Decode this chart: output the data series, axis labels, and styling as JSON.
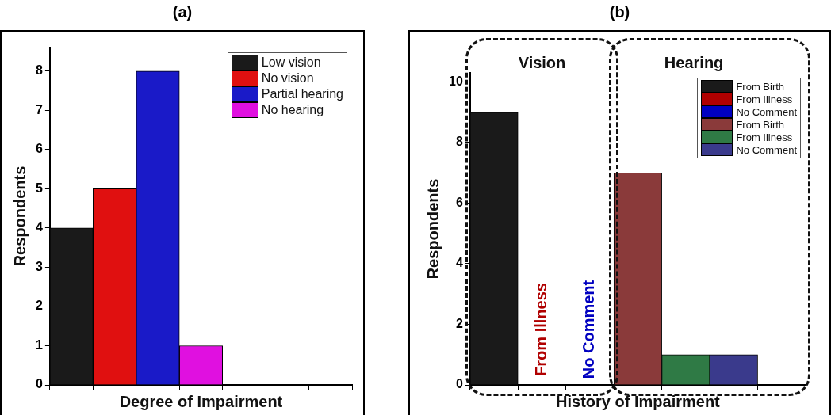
{
  "chart_data": [
    {
      "type": "bar",
      "title": "(a)",
      "xlabel": "Degree of Impairment",
      "ylabel": "Respondents",
      "categories": [
        null,
        null,
        null,
        null,
        null,
        null,
        null
      ],
      "series": [
        {
          "name": "Low vision",
          "color": "#1a1a1a",
          "values": [
            4,
            null,
            null,
            null,
            null,
            null,
            null
          ]
        },
        {
          "name": "No vision",
          "color": "#e01010",
          "values": [
            null,
            5,
            null,
            null,
            null,
            null,
            null
          ]
        },
        {
          "name": "Partial hearing",
          "color": "#1a1ac8",
          "values": [
            null,
            null,
            8,
            null,
            null,
            null,
            null
          ]
        },
        {
          "name": "No hearing",
          "color": "#e010e0",
          "values": [
            null,
            null,
            null,
            1,
            null,
            null,
            null
          ]
        }
      ],
      "ylim": [
        0,
        8.6
      ],
      "yticks": [
        0,
        1,
        2,
        3,
        4,
        5,
        6,
        7,
        8
      ],
      "grid": false,
      "legend": "top right",
      "tick_labels": "y"
    },
    {
      "type": "bar",
      "title": "(b)",
      "xlabel": "History of Impairment",
      "ylabel": "Respondents",
      "categories": [
        null,
        null,
        null,
        null,
        null,
        null,
        null
      ],
      "series": [
        {
          "name": "From Birth",
          "color": "#1a1a1a",
          "values": [
            9,
            null,
            null,
            null,
            null,
            null,
            null
          ]
        },
        {
          "name": "From Illness",
          "color": "#b00000",
          "values": [
            null,
            0,
            null,
            null,
            null,
            null,
            null
          ]
        },
        {
          "name": "No Comment",
          "color": "#0000c0",
          "values": [
            null,
            null,
            0,
            null,
            null,
            null,
            null
          ]
        },
        {
          "name": "From Birth",
          "color": "#8a3a3a",
          "values": [
            null,
            null,
            null,
            7,
            null,
            null,
            null
          ]
        },
        {
          "name": "From Illness",
          "color": "#2f7a45",
          "values": [
            null,
            null,
            null,
            null,
            1,
            null,
            null
          ]
        },
        {
          "name": "No Comment",
          "color": "#3a3a8c",
          "values": [
            null,
            null,
            null,
            null,
            null,
            1,
            null
          ]
        }
      ],
      "annotations": [
        "Vision",
        "Hearing",
        "From Illness",
        "No Comment"
      ],
      "ylim": [
        0,
        10.3
      ],
      "yticks": [
        0,
        2,
        4,
        6,
        8,
        10
      ],
      "grid": false,
      "legend": "top right",
      "tick_labels": "y"
    }
  ]
}
